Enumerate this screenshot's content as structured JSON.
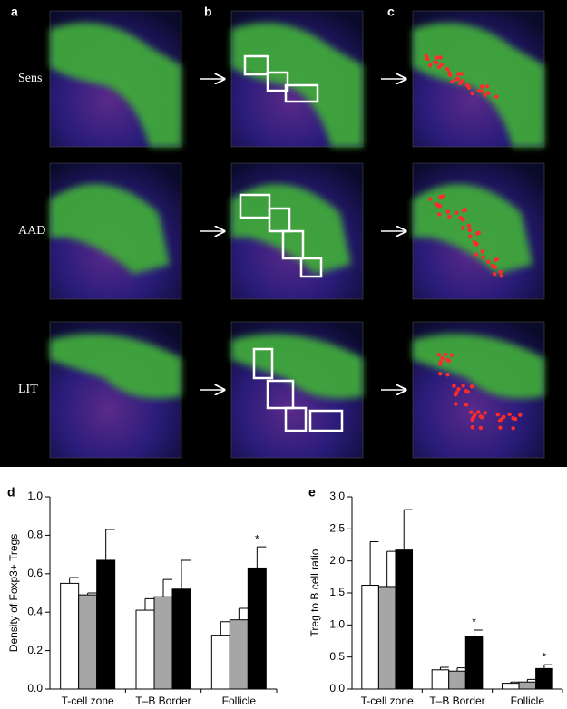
{
  "panel_labels": [
    "a",
    "b",
    "c"
  ],
  "row_labels": [
    "Sens",
    "AAD",
    "LIT"
  ],
  "chart_data": [
    {
      "type": "bar",
      "panel": "d",
      "ylabel": "Density of Foxp3+ Tregs",
      "categories": [
        "T-cell zone",
        "T–B Border",
        "Follicle"
      ],
      "ylim": [
        0,
        1
      ],
      "yticks": [
        {
          "value": 0,
          "label": "0.0"
        },
        0.2,
        0.4,
        0.6,
        0.8,
        {
          "value": 1,
          "label": "1.0"
        }
      ],
      "series": [
        {
          "color": "#ffffff",
          "values": [
            0.55,
            0.41,
            0.28
          ],
          "errors": [
            0.03,
            0.06,
            0.07
          ],
          "significance": [
            null,
            null,
            null
          ]
        },
        {
          "color": "#a6a6a6",
          "values": [
            0.49,
            0.48,
            0.36
          ],
          "errors": [
            0.01,
            0.09,
            0.06
          ],
          "significance": [
            null,
            null,
            null
          ]
        },
        {
          "color": "#000000",
          "values": [
            0.67,
            0.52,
            0.63
          ],
          "errors": [
            0.16,
            0.15,
            0.11
          ],
          "significance": [
            null,
            null,
            "*"
          ]
        }
      ]
    },
    {
      "type": "bar",
      "panel": "e",
      "ylabel": "Treg to B cell ratio",
      "categories": [
        "T-cell zone",
        "T–B Border",
        "Follicle"
      ],
      "ylim": [
        0,
        3
      ],
      "yticks": [
        {
          "value": 0,
          "label": "0.0"
        },
        0.5,
        {
          "value": 1,
          "label": "1.0"
        },
        1.5,
        {
          "value": 2,
          "label": "2.0"
        },
        2.5,
        {
          "value": 3,
          "label": "3.0"
        }
      ],
      "series": [
        {
          "color": "#ffffff",
          "values": [
            1.62,
            0.3,
            0.09
          ],
          "errors": [
            0.68,
            0.04,
            0.02
          ],
          "significance": [
            null,
            null,
            null
          ]
        },
        {
          "color": "#a6a6a6",
          "values": [
            1.6,
            0.28,
            0.11
          ],
          "errors": [
            0.55,
            0.05,
            0.04
          ],
          "significance": [
            null,
            null,
            null
          ]
        },
        {
          "color": "#000000",
          "values": [
            2.17,
            0.82,
            0.32
          ],
          "errors": [
            0.63,
            0.1,
            0.06
          ],
          "significance": [
            null,
            "*",
            "*"
          ]
        }
      ]
    }
  ]
}
